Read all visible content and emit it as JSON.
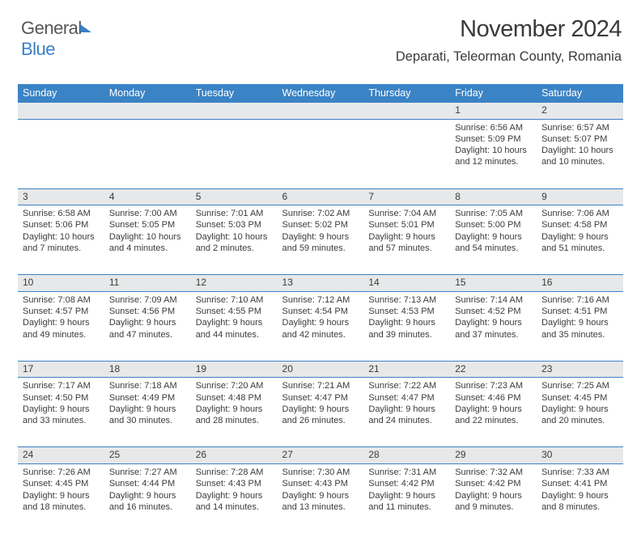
{
  "logo": {
    "general": "General",
    "blue": "Blue"
  },
  "header": {
    "month_year": "November 2024",
    "location": "Deparati, Teleorman County, Romania"
  },
  "colors": {
    "header_bg": "#3a83c5",
    "header_text": "#ffffff",
    "daynum_bg": "#e7e8e9",
    "text": "#3b3b3b",
    "logo_gray": "#565656",
    "logo_blue": "#3b7fc4",
    "border": "#3a83c5"
  },
  "day_headers": [
    "Sunday",
    "Monday",
    "Tuesday",
    "Wednesday",
    "Thursday",
    "Friday",
    "Saturday"
  ],
  "weeks": [
    [
      {
        "n": "",
        "sr": "",
        "ss": "",
        "dl": ""
      },
      {
        "n": "",
        "sr": "",
        "ss": "",
        "dl": ""
      },
      {
        "n": "",
        "sr": "",
        "ss": "",
        "dl": ""
      },
      {
        "n": "",
        "sr": "",
        "ss": "",
        "dl": ""
      },
      {
        "n": "",
        "sr": "",
        "ss": "",
        "dl": ""
      },
      {
        "n": "1",
        "sr": "Sunrise: 6:56 AM",
        "ss": "Sunset: 5:09 PM",
        "dl": "Daylight: 10 hours and 12 minutes."
      },
      {
        "n": "2",
        "sr": "Sunrise: 6:57 AM",
        "ss": "Sunset: 5:07 PM",
        "dl": "Daylight: 10 hours and 10 minutes."
      }
    ],
    [
      {
        "n": "3",
        "sr": "Sunrise: 6:58 AM",
        "ss": "Sunset: 5:06 PM",
        "dl": "Daylight: 10 hours and 7 minutes."
      },
      {
        "n": "4",
        "sr": "Sunrise: 7:00 AM",
        "ss": "Sunset: 5:05 PM",
        "dl": "Daylight: 10 hours and 4 minutes."
      },
      {
        "n": "5",
        "sr": "Sunrise: 7:01 AM",
        "ss": "Sunset: 5:03 PM",
        "dl": "Daylight: 10 hours and 2 minutes."
      },
      {
        "n": "6",
        "sr": "Sunrise: 7:02 AM",
        "ss": "Sunset: 5:02 PM",
        "dl": "Daylight: 9 hours and 59 minutes."
      },
      {
        "n": "7",
        "sr": "Sunrise: 7:04 AM",
        "ss": "Sunset: 5:01 PM",
        "dl": "Daylight: 9 hours and 57 minutes."
      },
      {
        "n": "8",
        "sr": "Sunrise: 7:05 AM",
        "ss": "Sunset: 5:00 PM",
        "dl": "Daylight: 9 hours and 54 minutes."
      },
      {
        "n": "9",
        "sr": "Sunrise: 7:06 AM",
        "ss": "Sunset: 4:58 PM",
        "dl": "Daylight: 9 hours and 51 minutes."
      }
    ],
    [
      {
        "n": "10",
        "sr": "Sunrise: 7:08 AM",
        "ss": "Sunset: 4:57 PM",
        "dl": "Daylight: 9 hours and 49 minutes."
      },
      {
        "n": "11",
        "sr": "Sunrise: 7:09 AM",
        "ss": "Sunset: 4:56 PM",
        "dl": "Daylight: 9 hours and 47 minutes."
      },
      {
        "n": "12",
        "sr": "Sunrise: 7:10 AM",
        "ss": "Sunset: 4:55 PM",
        "dl": "Daylight: 9 hours and 44 minutes."
      },
      {
        "n": "13",
        "sr": "Sunrise: 7:12 AM",
        "ss": "Sunset: 4:54 PM",
        "dl": "Daylight: 9 hours and 42 minutes."
      },
      {
        "n": "14",
        "sr": "Sunrise: 7:13 AM",
        "ss": "Sunset: 4:53 PM",
        "dl": "Daylight: 9 hours and 39 minutes."
      },
      {
        "n": "15",
        "sr": "Sunrise: 7:14 AM",
        "ss": "Sunset: 4:52 PM",
        "dl": "Daylight: 9 hours and 37 minutes."
      },
      {
        "n": "16",
        "sr": "Sunrise: 7:16 AM",
        "ss": "Sunset: 4:51 PM",
        "dl": "Daylight: 9 hours and 35 minutes."
      }
    ],
    [
      {
        "n": "17",
        "sr": "Sunrise: 7:17 AM",
        "ss": "Sunset: 4:50 PM",
        "dl": "Daylight: 9 hours and 33 minutes."
      },
      {
        "n": "18",
        "sr": "Sunrise: 7:18 AM",
        "ss": "Sunset: 4:49 PM",
        "dl": "Daylight: 9 hours and 30 minutes."
      },
      {
        "n": "19",
        "sr": "Sunrise: 7:20 AM",
        "ss": "Sunset: 4:48 PM",
        "dl": "Daylight: 9 hours and 28 minutes."
      },
      {
        "n": "20",
        "sr": "Sunrise: 7:21 AM",
        "ss": "Sunset: 4:47 PM",
        "dl": "Daylight: 9 hours and 26 minutes."
      },
      {
        "n": "21",
        "sr": "Sunrise: 7:22 AM",
        "ss": "Sunset: 4:47 PM",
        "dl": "Daylight: 9 hours and 24 minutes."
      },
      {
        "n": "22",
        "sr": "Sunrise: 7:23 AM",
        "ss": "Sunset: 4:46 PM",
        "dl": "Daylight: 9 hours and 22 minutes."
      },
      {
        "n": "23",
        "sr": "Sunrise: 7:25 AM",
        "ss": "Sunset: 4:45 PM",
        "dl": "Daylight: 9 hours and 20 minutes."
      }
    ],
    [
      {
        "n": "24",
        "sr": "Sunrise: 7:26 AM",
        "ss": "Sunset: 4:45 PM",
        "dl": "Daylight: 9 hours and 18 minutes."
      },
      {
        "n": "25",
        "sr": "Sunrise: 7:27 AM",
        "ss": "Sunset: 4:44 PM",
        "dl": "Daylight: 9 hours and 16 minutes."
      },
      {
        "n": "26",
        "sr": "Sunrise: 7:28 AM",
        "ss": "Sunset: 4:43 PM",
        "dl": "Daylight: 9 hours and 14 minutes."
      },
      {
        "n": "27",
        "sr": "Sunrise: 7:30 AM",
        "ss": "Sunset: 4:43 PM",
        "dl": "Daylight: 9 hours and 13 minutes."
      },
      {
        "n": "28",
        "sr": "Sunrise: 7:31 AM",
        "ss": "Sunset: 4:42 PM",
        "dl": "Daylight: 9 hours and 11 minutes."
      },
      {
        "n": "29",
        "sr": "Sunrise: 7:32 AM",
        "ss": "Sunset: 4:42 PM",
        "dl": "Daylight: 9 hours and 9 minutes."
      },
      {
        "n": "30",
        "sr": "Sunrise: 7:33 AM",
        "ss": "Sunset: 4:41 PM",
        "dl": "Daylight: 9 hours and 8 minutes."
      }
    ]
  ]
}
